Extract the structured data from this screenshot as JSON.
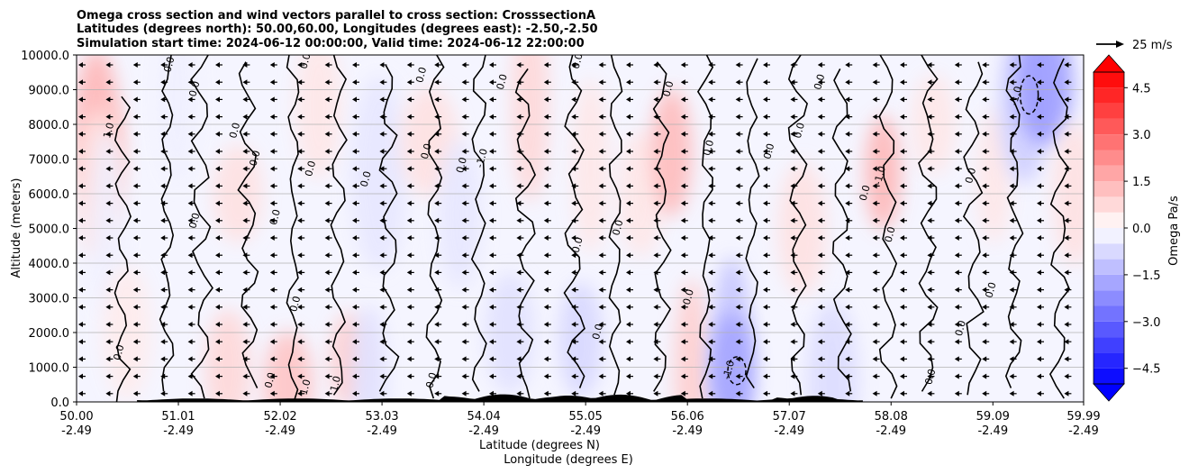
{
  "chart_data": {
    "type": "heatmap",
    "title_lines": [
      "Omega cross section and wind vectors parallel to cross section: CrosssectionA",
      "Latitudes (degrees north): 50.00,60.00, Longitudes (degrees east): -2.50,-2.50",
      "Simulation start time: 2024-06-12 00:00:00, Valid time: 2024-06-12 22:00:00"
    ],
    "ylabel": "Altitude (meters)",
    "xlabel_lat": "Latitude (degrees N)",
    "xlabel_lon": "Longitude (degrees E)",
    "ylim": [
      0,
      10000
    ],
    "xlim": [
      50.0,
      59.99
    ],
    "y_ticks": [
      {
        "value": 0,
        "label": "0.0"
      },
      {
        "value": 1000,
        "label": "1000.0"
      },
      {
        "value": 2000,
        "label": "2000.0"
      },
      {
        "value": 3000,
        "label": "3000.0"
      },
      {
        "value": 4000,
        "label": "4000.0"
      },
      {
        "value": 5000,
        "label": "5000.0"
      },
      {
        "value": 6000,
        "label": "6000.0"
      },
      {
        "value": 7000,
        "label": "7000.0"
      },
      {
        "value": 8000,
        "label": "8000.0"
      },
      {
        "value": 9000,
        "label": "9000.0"
      },
      {
        "value": 10000,
        "label": "10000.0"
      }
    ],
    "x_ticks": [
      {
        "value": 50.0,
        "lat": "50.00",
        "lon": "-2.49"
      },
      {
        "value": 51.01,
        "lat": "51.01",
        "lon": "-2.49"
      },
      {
        "value": 52.02,
        "lat": "52.02",
        "lon": "-2.49"
      },
      {
        "value": 53.03,
        "lat": "53.03",
        "lon": "-2.49"
      },
      {
        "value": 54.04,
        "lat": "54.04",
        "lon": "-2.49"
      },
      {
        "value": 55.05,
        "lat": "55.05",
        "lon": "-2.49"
      },
      {
        "value": 56.06,
        "lat": "56.06",
        "lon": "-2.49"
      },
      {
        "value": 57.07,
        "lat": "57.07",
        "lon": "-2.49"
      },
      {
        "value": 58.08,
        "lat": "58.08",
        "lon": "-2.49"
      },
      {
        "value": 59.09,
        "lat": "59.09",
        "lon": "-2.49"
      },
      {
        "value": 59.99,
        "lat": "59.99",
        "lon": "-2.49"
      }
    ],
    "colorbar": {
      "label": "Omega Pa/s",
      "range": [
        -5,
        5
      ],
      "ticks": [
        {
          "value": 4.5,
          "label": "4.5"
        },
        {
          "value": 3.0,
          "label": "3.0"
        },
        {
          "value": 1.5,
          "label": "1.5"
        },
        {
          "value": 0.0,
          "label": "0.0"
        },
        {
          "value": -1.5,
          "label": "−1.5"
        },
        {
          "value": -3.0,
          "label": "−3.0"
        },
        {
          "value": -4.5,
          "label": "−4.5"
        }
      ],
      "levels": 20,
      "color_positive": "#ff0000",
      "color_negative": "#0000ff"
    },
    "vector_key_label": "25 m/s",
    "omega_patches": [
      {
        "lat": 50.2,
        "alt": 8000,
        "value": 1.5
      },
      {
        "lat": 50.3,
        "alt": 7000,
        "value": 1.0
      },
      {
        "lat": 50.2,
        "alt": 6300,
        "value": 0.6
      },
      {
        "lat": 50.3,
        "alt": 5200,
        "value": -0.3
      },
      {
        "lat": 50.5,
        "alt": 2000,
        "value": 0.4
      },
      {
        "lat": 51.0,
        "alt": 8800,
        "value": -0.3
      },
      {
        "lat": 51.6,
        "alt": 6000,
        "value": 0.6
      },
      {
        "lat": 51.5,
        "alt": 1000,
        "value": 0.8
      },
      {
        "lat": 52.1,
        "alt": 500,
        "value": 1.2
      },
      {
        "lat": 52.4,
        "alt": 8500,
        "value": 0.5
      },
      {
        "lat": 52.7,
        "alt": 1200,
        "value": 1.0
      },
      {
        "lat": 53.0,
        "alt": 6600,
        "value": -0.5
      },
      {
        "lat": 52.9,
        "alt": 800,
        "value": -0.6
      },
      {
        "lat": 53.5,
        "alt": 7500,
        "value": 0.6
      },
      {
        "lat": 53.8,
        "alt": 5400,
        "value": -0.5
      },
      {
        "lat": 54.3,
        "alt": 2000,
        "value": -0.6
      },
      {
        "lat": 54.5,
        "alt": 8600,
        "value": 0.8
      },
      {
        "lat": 55.0,
        "alt": 1800,
        "value": -0.8
      },
      {
        "lat": 55.6,
        "alt": 6000,
        "value": 0.5
      },
      {
        "lat": 55.1,
        "alt": 6800,
        "value": 0.5
      },
      {
        "lat": 55.9,
        "alt": 7200,
        "value": 1.4
      },
      {
        "lat": 56.1,
        "alt": 800,
        "value": 1.0
      },
      {
        "lat": 56.5,
        "alt": 1500,
        "value": -1.2
      },
      {
        "lat": 56.5,
        "alt": 900,
        "value": -1.8
      },
      {
        "lat": 57.2,
        "alt": 5000,
        "value": 0.6
      },
      {
        "lat": 57.5,
        "alt": 600,
        "value": -0.7
      },
      {
        "lat": 58.0,
        "alt": 6600,
        "value": 1.5
      },
      {
        "lat": 58.5,
        "alt": 8000,
        "value": 0.5
      },
      {
        "lat": 59.1,
        "alt": 6500,
        "value": 0.5
      },
      {
        "lat": 59.4,
        "alt": 8600,
        "value": -1.0
      },
      {
        "lat": 59.6,
        "alt": 9200,
        "value": -2.0
      },
      {
        "lat": 59.9,
        "alt": 6000,
        "value": 0.6
      }
    ],
    "contour_lines": [
      {
        "lat": 50.45,
        "alt_top": 8800,
        "alt_bot": 0,
        "amp": 0.06
      },
      {
        "lat": 50.9,
        "alt_top": 10000,
        "alt_bot": 300,
        "amp": 0.05
      },
      {
        "lat": 51.25,
        "alt_top": 10000,
        "alt_bot": 100,
        "amp": 0.08
      },
      {
        "lat": 51.7,
        "alt_top": 9800,
        "alt_bot": 400,
        "amp": 0.07
      },
      {
        "lat": 52.15,
        "alt_top": 10000,
        "alt_bot": 0,
        "amp": 0.05
      },
      {
        "lat": 52.6,
        "alt_top": 10000,
        "alt_bot": 200,
        "amp": 0.06
      },
      {
        "lat": 53.1,
        "alt_top": 9700,
        "alt_bot": 300,
        "amp": 0.08
      },
      {
        "lat": 53.55,
        "alt_top": 10000,
        "alt_bot": 100,
        "amp": 0.07
      },
      {
        "lat": 54.0,
        "alt_top": 10000,
        "alt_bot": 300,
        "amp": 0.06
      },
      {
        "lat": 54.45,
        "alt_top": 9600,
        "alt_bot": 100,
        "amp": 0.07
      },
      {
        "lat": 54.95,
        "alt_top": 10000,
        "alt_bot": 400,
        "amp": 0.08
      },
      {
        "lat": 55.35,
        "alt_top": 10000,
        "alt_bot": 200,
        "amp": 0.06
      },
      {
        "lat": 55.8,
        "alt_top": 9800,
        "alt_bot": 300,
        "amp": 0.07
      },
      {
        "lat": 56.25,
        "alt_top": 10000,
        "alt_bot": 100,
        "amp": 0.06
      },
      {
        "lat": 56.7,
        "alt_top": 9900,
        "alt_bot": 400,
        "amp": 0.05
      },
      {
        "lat": 57.15,
        "alt_top": 10000,
        "alt_bot": 200,
        "amp": 0.07
      },
      {
        "lat": 57.6,
        "alt_top": 9600,
        "alt_bot": 300,
        "amp": 0.08
      },
      {
        "lat": 58.05,
        "alt_top": 10000,
        "alt_bot": 100,
        "amp": 0.06
      },
      {
        "lat": 58.45,
        "alt_top": 10000,
        "alt_bot": 300,
        "amp": 0.07
      },
      {
        "lat": 58.9,
        "alt_top": 9800,
        "alt_bot": 200,
        "amp": 0.08
      },
      {
        "lat": 59.3,
        "alt_top": 10000,
        "alt_bot": 400,
        "amp": 0.06
      },
      {
        "lat": 59.75,
        "alt_top": 9900,
        "alt_bot": 100,
        "amp": 0.07
      }
    ],
    "contour_labels": [
      {
        "lat": 50.35,
        "alt": 7800,
        "text": "1.0"
      },
      {
        "lat": 50.45,
        "alt": 1400,
        "text": "0.0"
      },
      {
        "lat": 50.95,
        "alt": 9700,
        "text": "0.0"
      },
      {
        "lat": 51.2,
        "alt": 9000,
        "text": "0.0"
      },
      {
        "lat": 51.2,
        "alt": 5200,
        "text": "0.0"
      },
      {
        "lat": 51.6,
        "alt": 7800,
        "text": "0.0"
      },
      {
        "lat": 51.8,
        "alt": 7000,
        "text": "0.0"
      },
      {
        "lat": 51.95,
        "alt": 600,
        "text": "0.0"
      },
      {
        "lat": 52.0,
        "alt": 5300,
        "text": "0.0"
      },
      {
        "lat": 52.2,
        "alt": 2800,
        "text": "0.0"
      },
      {
        "lat": 52.3,
        "alt": 9800,
        "text": "0.0"
      },
      {
        "lat": 52.35,
        "alt": 6700,
        "text": "0.0"
      },
      {
        "lat": 52.3,
        "alt": 400,
        "text": "1.0"
      },
      {
        "lat": 52.6,
        "alt": 500,
        "text": "1.0"
      },
      {
        "lat": 52.9,
        "alt": 6400,
        "text": "0.0"
      },
      {
        "lat": 53.45,
        "alt": 9400,
        "text": "0.0"
      },
      {
        "lat": 53.5,
        "alt": 7200,
        "text": "0.0"
      },
      {
        "lat": 53.55,
        "alt": 600,
        "text": "0.0"
      },
      {
        "lat": 53.85,
        "alt": 6800,
        "text": "0.0"
      },
      {
        "lat": 54.05,
        "alt": 7000,
        "text": "-1.0"
      },
      {
        "lat": 54.25,
        "alt": 9200,
        "text": "0.0"
      },
      {
        "lat": 55.0,
        "alt": 9800,
        "text": "0.0"
      },
      {
        "lat": 55.0,
        "alt": 4500,
        "text": "0.0"
      },
      {
        "lat": 55.2,
        "alt": 2000,
        "text": "0.0"
      },
      {
        "lat": 55.4,
        "alt": 5000,
        "text": "0.0"
      },
      {
        "lat": 55.9,
        "alt": 9000,
        "text": "0.0"
      },
      {
        "lat": 56.1,
        "alt": 3000,
        "text": "0.0"
      },
      {
        "lat": 56.3,
        "alt": 7300,
        "text": "0.0"
      },
      {
        "lat": 56.5,
        "alt": 900,
        "text": "-1.0"
      },
      {
        "lat": 56.9,
        "alt": 7200,
        "text": "0.0"
      },
      {
        "lat": 57.2,
        "alt": 7800,
        "text": "0.0"
      },
      {
        "lat": 57.4,
        "alt": 9200,
        "text": "0.0"
      },
      {
        "lat": 57.85,
        "alt": 6000,
        "text": "0.0"
      },
      {
        "lat": 58.0,
        "alt": 6500,
        "text": "-1.0"
      },
      {
        "lat": 58.1,
        "alt": 4800,
        "text": "0.0"
      },
      {
        "lat": 58.5,
        "alt": 700,
        "text": "0.0"
      },
      {
        "lat": 58.9,
        "alt": 6500,
        "text": "0.0"
      },
      {
        "lat": 59.1,
        "alt": 3200,
        "text": "0.0"
      },
      {
        "lat": 58.8,
        "alt": 2100,
        "text": "0.0"
      },
      {
        "lat": 59.35,
        "alt": 8800,
        "text": "-1.0"
      }
    ]
  }
}
